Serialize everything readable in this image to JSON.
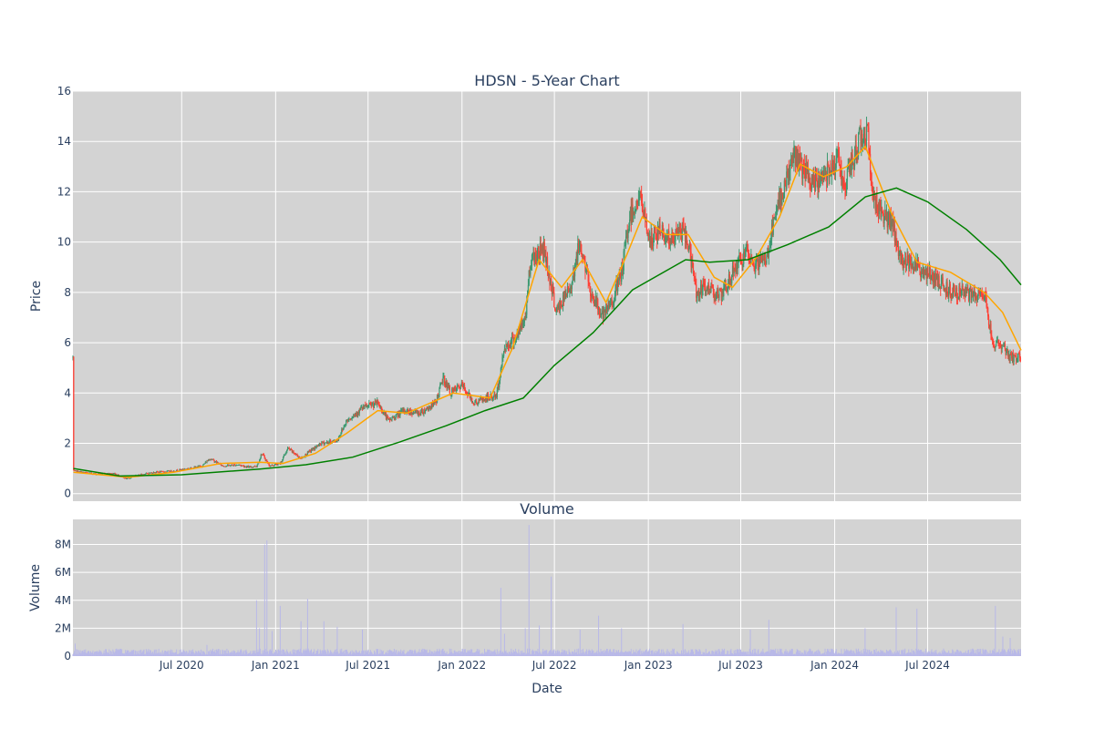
{
  "chart_data": [
    {
      "type": "candlestick",
      "title": "HDSN - 5-Year Chart",
      "ylabel": "Price",
      "ylim": [
        -0.3,
        16
      ],
      "yticks": [
        0,
        2,
        4,
        6,
        8,
        10,
        12,
        14,
        16
      ],
      "xrange": [
        "2019-12-01",
        "2024-12-31"
      ],
      "colors": {
        "increasing": "#3d9970",
        "decreasing": "#ff4136",
        "ma_short": "#ffa500",
        "ma_long": "#008000"
      },
      "series": [
        {
          "name": "",
          "kind": "ohlc"
        },
        {
          "name": "",
          "kind": "moving-average-short"
        },
        {
          "name": "",
          "kind": "moving-average-long"
        }
      ],
      "close_path": [
        [
          "2019-12-02",
          0.9
        ],
        [
          "2020-01-15",
          0.78
        ],
        [
          "2020-02-20",
          0.8
        ],
        [
          "2020-03-15",
          0.6
        ],
        [
          "2020-04-10",
          0.75
        ],
        [
          "2020-05-10",
          0.85
        ],
        [
          "2020-06-15",
          0.9
        ],
        [
          "2020-07-15",
          1.0
        ],
        [
          "2020-08-10",
          1.1
        ],
        [
          "2020-08-25",
          1.4
        ],
        [
          "2020-09-20",
          1.1
        ],
        [
          "2020-10-20",
          1.15
        ],
        [
          "2020-11-10",
          1.05
        ],
        [
          "2020-11-25",
          1.1
        ],
        [
          "2020-12-05",
          1.6
        ],
        [
          "2020-12-20",
          1.1
        ],
        [
          "2021-01-10",
          1.2
        ],
        [
          "2021-01-25",
          1.8
        ],
        [
          "2021-02-20",
          1.4
        ],
        [
          "2021-03-10",
          1.7
        ],
        [
          "2021-04-01",
          2.0
        ],
        [
          "2021-05-01",
          2.1
        ],
        [
          "2021-05-20",
          2.9
        ],
        [
          "2021-06-20",
          3.4
        ],
        [
          "2021-07-20",
          3.6
        ],
        [
          "2021-08-10",
          2.9
        ],
        [
          "2021-09-10",
          3.3
        ],
        [
          "2021-10-10",
          3.2
        ],
        [
          "2021-11-10",
          3.6
        ],
        [
          "2021-11-25",
          4.6
        ],
        [
          "2021-12-10",
          4.0
        ],
        [
          "2022-01-01",
          4.3
        ],
        [
          "2022-01-25",
          3.6
        ],
        [
          "2022-02-20",
          3.8
        ],
        [
          "2022-03-10",
          3.9
        ],
        [
          "2022-03-25",
          5.8
        ],
        [
          "2022-04-20",
          6.3
        ],
        [
          "2022-05-05",
          7.0
        ],
        [
          "2022-05-15",
          9.3
        ],
        [
          "2022-06-10",
          9.8
        ],
        [
          "2022-07-05",
          7.2
        ],
        [
          "2022-08-01",
          8.2
        ],
        [
          "2022-08-20",
          10.0
        ],
        [
          "2022-09-10",
          8.0
        ],
        [
          "2022-10-05",
          7.0
        ],
        [
          "2022-10-25",
          7.8
        ],
        [
          "2022-11-10",
          8.8
        ],
        [
          "2022-11-25",
          11.0
        ],
        [
          "2022-12-15",
          11.8
        ],
        [
          "2023-01-05",
          10.0
        ],
        [
          "2023-01-25",
          10.5
        ],
        [
          "2023-02-15",
          10.0
        ],
        [
          "2023-03-05",
          10.5
        ],
        [
          "2023-03-20",
          10.0
        ],
        [
          "2023-04-05",
          8.0
        ],
        [
          "2023-05-01",
          8.2
        ],
        [
          "2023-05-25",
          7.8
        ],
        [
          "2023-06-20",
          9.0
        ],
        [
          "2023-07-10",
          9.5
        ],
        [
          "2023-07-25",
          9.1
        ],
        [
          "2023-08-20",
          9.3
        ],
        [
          "2023-09-01",
          10.5
        ],
        [
          "2023-09-20",
          12.0
        ],
        [
          "2023-10-15",
          13.5
        ],
        [
          "2023-11-01",
          12.8
        ],
        [
          "2023-11-20",
          12.2
        ],
        [
          "2023-12-15",
          12.8
        ],
        [
          "2024-01-05",
          13.4
        ],
        [
          "2024-01-20",
          12.2
        ],
        [
          "2024-02-05",
          13.2
        ],
        [
          "2024-02-20",
          14.2
        ],
        [
          "2024-03-05",
          14.5
        ],
        [
          "2024-03-15",
          11.8
        ],
        [
          "2024-04-10",
          11.0
        ],
        [
          "2024-04-25",
          10.5
        ],
        [
          "2024-05-10",
          9.2
        ],
        [
          "2024-06-01",
          9.3
        ],
        [
          "2024-06-20",
          8.8
        ],
        [
          "2024-07-15",
          8.6
        ],
        [
          "2024-08-10",
          8.1
        ],
        [
          "2024-09-10",
          8.0
        ],
        [
          "2024-10-05",
          7.8
        ],
        [
          "2024-10-20",
          8.0
        ],
        [
          "2024-11-05",
          6.0
        ],
        [
          "2024-11-25",
          5.9
        ],
        [
          "2024-12-10",
          5.4
        ],
        [
          "2024-12-31",
          5.4
        ]
      ],
      "ma_short": [
        [
          "2019-12-02",
          0.85
        ],
        [
          "2020-03-20",
          0.65
        ],
        [
          "2020-06-15",
          0.85
        ],
        [
          "2020-09-15",
          1.2
        ],
        [
          "2020-12-01",
          1.25
        ],
        [
          "2021-01-15",
          1.2
        ],
        [
          "2021-03-20",
          1.6
        ],
        [
          "2021-05-20",
          2.4
        ],
        [
          "2021-07-20",
          3.3
        ],
        [
          "2021-09-15",
          3.2
        ],
        [
          "2021-12-15",
          4.0
        ],
        [
          "2022-02-25",
          3.8
        ],
        [
          "2022-04-10",
          5.8
        ],
        [
          "2022-06-01",
          9.3
        ],
        [
          "2022-07-15",
          8.2
        ],
        [
          "2022-08-25",
          9.3
        ],
        [
          "2022-10-10",
          7.6
        ],
        [
          "2022-11-20",
          9.5
        ],
        [
          "2022-12-20",
          11.0
        ],
        [
          "2023-02-05",
          10.3
        ],
        [
          "2023-03-20",
          10.3
        ],
        [
          "2023-05-10",
          8.6
        ],
        [
          "2023-06-15",
          8.2
        ],
        [
          "2023-08-01",
          9.4
        ],
        [
          "2023-09-15",
          11.0
        ],
        [
          "2023-10-25",
          13.1
        ],
        [
          "2023-12-10",
          12.6
        ],
        [
          "2024-01-25",
          13.0
        ],
        [
          "2024-03-01",
          13.8
        ],
        [
          "2024-04-20",
          11.2
        ],
        [
          "2024-06-10",
          9.2
        ],
        [
          "2024-08-15",
          8.8
        ],
        [
          "2024-10-20",
          8.0
        ],
        [
          "2024-11-25",
          7.2
        ],
        [
          "2024-12-31",
          5.7
        ]
      ],
      "ma_long": [
        [
          "2019-12-02",
          1.0
        ],
        [
          "2020-03-01",
          0.7
        ],
        [
          "2020-07-01",
          0.75
        ],
        [
          "2020-12-01",
          0.98
        ],
        [
          "2021-03-01",
          1.15
        ],
        [
          "2021-06-01",
          1.45
        ],
        [
          "2021-09-01",
          2.05
        ],
        [
          "2021-12-01",
          2.7
        ],
        [
          "2022-02-15",
          3.3
        ],
        [
          "2022-05-01",
          3.8
        ],
        [
          "2022-07-01",
          5.1
        ],
        [
          "2022-09-15",
          6.4
        ],
        [
          "2022-12-01",
          8.1
        ],
        [
          "2023-03-15",
          9.3
        ],
        [
          "2023-05-01",
          9.2
        ],
        [
          "2023-07-15",
          9.3
        ],
        [
          "2023-10-01",
          9.9
        ],
        [
          "2023-12-20",
          10.6
        ],
        [
          "2024-03-01",
          11.8
        ],
        [
          "2024-05-01",
          12.15
        ],
        [
          "2024-07-01",
          11.6
        ],
        [
          "2024-09-15",
          10.5
        ],
        [
          "2024-11-20",
          9.3
        ],
        [
          "2024-12-31",
          8.3
        ]
      ]
    },
    {
      "type": "bar",
      "title": "Volume",
      "xlabel": "Date",
      "ylabel": "Volume",
      "ylim": [
        0,
        9800000
      ],
      "yticks": [
        0,
        2000000,
        4000000,
        6000000,
        8000000
      ],
      "ytick_labels": [
        "0",
        "2M",
        "4M",
        "6M",
        "8M"
      ],
      "xticks": [
        "2020-07-01",
        "2021-01-01",
        "2021-07-01",
        "2022-01-01",
        "2022-07-01",
        "2023-01-01",
        "2023-07-01",
        "2024-01-01",
        "2024-07-01"
      ],
      "xtick_labels": [
        "Jul 2020",
        "Jan 2021",
        "Jul 2021",
        "Jan 2022",
        "Jul 2022",
        "Jan 2023",
        "Jul 2023",
        "Jan 2024",
        "Jul 2024"
      ],
      "colors": {
        "bar": "#b8b8e8"
      },
      "baseline": 300000,
      "spikes": [
        [
          "2019-12-05",
          900000
        ],
        [
          "2020-08-20",
          800000
        ],
        [
          "2020-11-25",
          4000000
        ],
        [
          "2020-12-01",
          2000000
        ],
        [
          "2020-12-10",
          8000000
        ],
        [
          "2020-12-15",
          8300000
        ],
        [
          "2020-12-25",
          1800000
        ],
        [
          "2021-01-10",
          3600000
        ],
        [
          "2021-02-20",
          2500000
        ],
        [
          "2021-03-05",
          4100000
        ],
        [
          "2021-04-05",
          2500000
        ],
        [
          "2021-05-01",
          2100000
        ],
        [
          "2021-06-20",
          1900000
        ],
        [
          "2022-03-18",
          4900000
        ],
        [
          "2022-03-25",
          1600000
        ],
        [
          "2022-05-05",
          2000000
        ],
        [
          "2022-05-12",
          9400000
        ],
        [
          "2022-06-01",
          2200000
        ],
        [
          "2022-06-25",
          5700000
        ],
        [
          "2022-08-20",
          1900000
        ],
        [
          "2022-09-25",
          2900000
        ],
        [
          "2022-11-10",
          2000000
        ],
        [
          "2023-03-10",
          2300000
        ],
        [
          "2023-07-20",
          1900000
        ],
        [
          "2023-08-25",
          2600000
        ],
        [
          "2024-03-01",
          2000000
        ],
        [
          "2024-05-01",
          3500000
        ],
        [
          "2024-06-10",
          3400000
        ],
        [
          "2024-11-10",
          3600000
        ],
        [
          "2024-11-25",
          1400000
        ],
        [
          "2024-12-10",
          1300000
        ]
      ]
    }
  ]
}
